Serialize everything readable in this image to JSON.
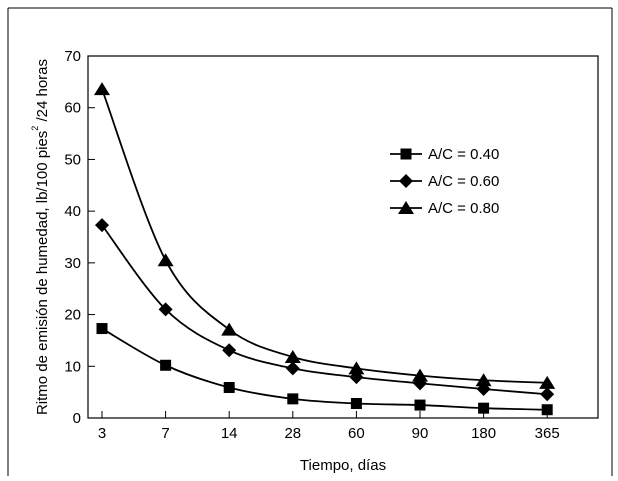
{
  "chart_data": {
    "type": "line",
    "categories": [
      "3",
      "7",
      "14",
      "28",
      "60",
      "90",
      "180",
      "365"
    ],
    "xlabel": "Tiempo, días",
    "ylabel": {
      "prefix": "Ritmo de emisión de humedad, lb/100 pies",
      "superscript": "2",
      "suffix": " /24 horas"
    },
    "ylim": [
      0,
      70
    ],
    "yticks": [
      "0",
      "10",
      "20",
      "30",
      "40",
      "50",
      "60",
      "70"
    ],
    "grid": false,
    "legend_position": "right",
    "series": [
      {
        "name": "A/C = 0.40",
        "marker": "square",
        "values": [
          17.3,
          10.2,
          5.9,
          3.7,
          2.8,
          2.5,
          1.9,
          1.6
        ]
      },
      {
        "name": "A/C = 0.60",
        "marker": "diamond",
        "values": [
          37.3,
          21.0,
          13.1,
          9.6,
          7.9,
          6.7,
          5.6,
          4.6
        ]
      },
      {
        "name": "A/C = 0.80",
        "marker": "triangle",
        "values": [
          63.6,
          30.5,
          17.1,
          11.8,
          9.6,
          8.2,
          7.3,
          6.8
        ]
      }
    ],
    "color": "#000000"
  }
}
